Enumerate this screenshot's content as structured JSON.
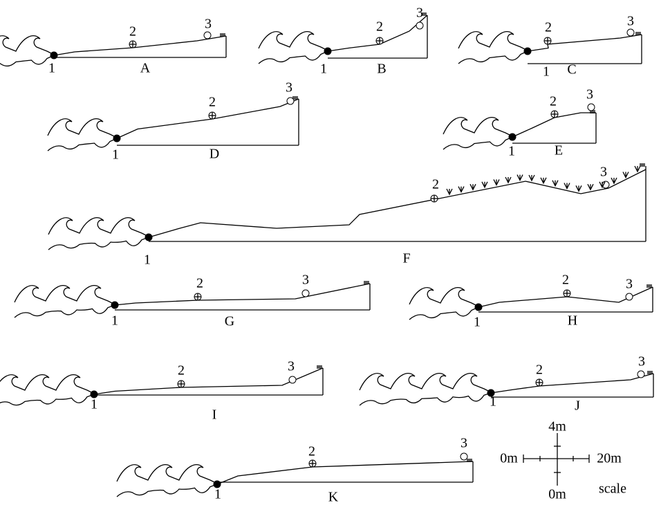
{
  "profiles": [
    {
      "label": "A",
      "points": [
        "1",
        "2",
        "3"
      ]
    },
    {
      "label": "B",
      "points": [
        "1",
        "2",
        "3"
      ]
    },
    {
      "label": "C",
      "points": [
        "1",
        "2",
        "3"
      ]
    },
    {
      "label": "D",
      "points": [
        "1",
        "2",
        "3"
      ]
    },
    {
      "label": "E",
      "points": [
        "1",
        "2",
        "3"
      ]
    },
    {
      "label": "F",
      "points": [
        "1",
        "2",
        "3"
      ]
    },
    {
      "label": "G",
      "points": [
        "1",
        "2",
        "3"
      ]
    },
    {
      "label": "H",
      "points": [
        "1",
        "2",
        "3"
      ]
    },
    {
      "label": "I",
      "points": [
        "1",
        "2",
        "3"
      ]
    },
    {
      "label": "J",
      "points": [
        "1",
        "2",
        "3"
      ]
    },
    {
      "label": "K",
      "points": [
        "1",
        "2",
        "3"
      ]
    }
  ],
  "scale": {
    "title": "scale",
    "vertical_top": "4m",
    "vertical_bottom": "0m",
    "horizontal_left": "0m",
    "horizontal_right": "20m"
  }
}
